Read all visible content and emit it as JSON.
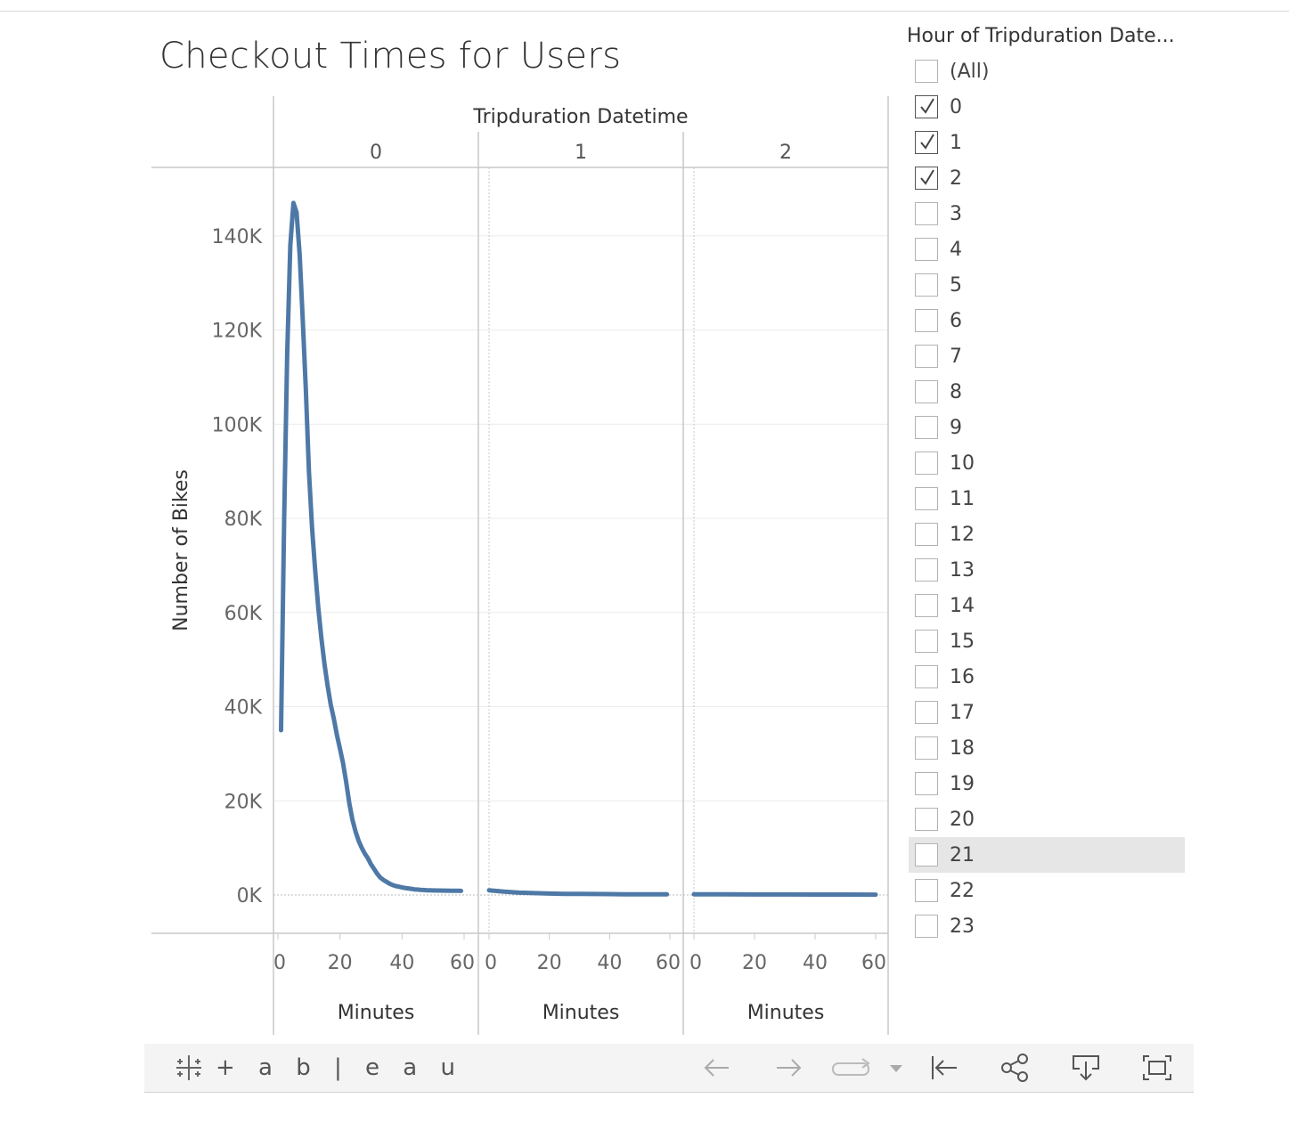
{
  "title": "Checkout Times for Users",
  "chart_data": {
    "type": "line",
    "ylabel": "Number of Bikes",
    "column_header": "Tripduration Datetime",
    "xlabel": "Minutes",
    "ylim": [
      0,
      150000
    ],
    "yticks": [
      0,
      20000,
      40000,
      60000,
      80000,
      100000,
      120000,
      140000
    ],
    "ytick_labels": [
      "0K",
      "20K",
      "40K",
      "60K",
      "80K",
      "100K",
      "120K",
      "140K"
    ],
    "xlim": [
      0,
      60
    ],
    "xticks": [
      0,
      20,
      40,
      60
    ],
    "grid": true,
    "color": "#4e79a7",
    "panels": [
      {
        "hour": "0",
        "x": [
          1,
          2,
          3,
          4,
          5,
          6,
          7,
          8,
          9,
          10,
          11,
          12,
          13,
          14,
          15,
          16,
          17,
          18,
          19,
          20,
          21,
          22,
          23,
          24,
          25,
          26,
          27,
          28,
          29,
          30,
          31,
          32,
          33,
          34,
          35,
          36,
          37,
          38,
          39,
          40,
          41,
          42,
          43,
          44,
          45,
          46,
          47,
          48,
          49,
          50,
          52,
          54,
          56,
          58,
          59
        ],
        "y": [
          35000,
          80000,
          115000,
          138000,
          147000,
          145000,
          136000,
          122000,
          107000,
          90000,
          78000,
          69000,
          61000,
          54500,
          49000,
          44500,
          40500,
          37500,
          34000,
          31000,
          28000,
          24000,
          19500,
          16000,
          13500,
          11500,
          10000,
          8800,
          7800,
          6500,
          5500,
          4500,
          3700,
          3200,
          2800,
          2400,
          2100,
          1900,
          1750,
          1600,
          1500,
          1400,
          1300,
          1200,
          1150,
          1100,
          1050,
          1000,
          980,
          960,
          940,
          920,
          900,
          880,
          870
        ]
      },
      {
        "hour": "1",
        "x": [
          0,
          5,
          10,
          15,
          20,
          25,
          30,
          35,
          40,
          45,
          50,
          55,
          59
        ],
        "y": [
          1000,
          700,
          500,
          400,
          300,
          250,
          220,
          200,
          180,
          160,
          150,
          140,
          130
        ]
      },
      {
        "hour": "2",
        "x": [
          0,
          10,
          20,
          30,
          40,
          50,
          60
        ],
        "y": [
          150,
          130,
          120,
          110,
          100,
          90,
          80
        ]
      }
    ]
  },
  "filter": {
    "title": "Hour of Tripduration Date...",
    "items": [
      {
        "label": "(All)",
        "checked": false
      },
      {
        "label": "0",
        "checked": true
      },
      {
        "label": "1",
        "checked": true
      },
      {
        "label": "2",
        "checked": true
      },
      {
        "label": "3",
        "checked": false
      },
      {
        "label": "4",
        "checked": false
      },
      {
        "label": "5",
        "checked": false
      },
      {
        "label": "6",
        "checked": false
      },
      {
        "label": "7",
        "checked": false
      },
      {
        "label": "8",
        "checked": false
      },
      {
        "label": "9",
        "checked": false
      },
      {
        "label": "10",
        "checked": false
      },
      {
        "label": "11",
        "checked": false
      },
      {
        "label": "12",
        "checked": false
      },
      {
        "label": "13",
        "checked": false
      },
      {
        "label": "14",
        "checked": false
      },
      {
        "label": "15",
        "checked": false
      },
      {
        "label": "16",
        "checked": false
      },
      {
        "label": "17",
        "checked": false
      },
      {
        "label": "18",
        "checked": false
      },
      {
        "label": "19",
        "checked": false
      },
      {
        "label": "20",
        "checked": false
      },
      {
        "label": "21",
        "checked": false,
        "hovered": true
      },
      {
        "label": "22",
        "checked": false
      },
      {
        "label": "23",
        "checked": false
      }
    ]
  },
  "toolbar": {
    "logo_text": "+ a b | e a u",
    "icons": [
      "undo-icon",
      "redo-icon",
      "revert-icon",
      "dropdown-caret-icon",
      "reset-icon",
      "share-icon",
      "download-icon",
      "fullscreen-icon"
    ]
  }
}
